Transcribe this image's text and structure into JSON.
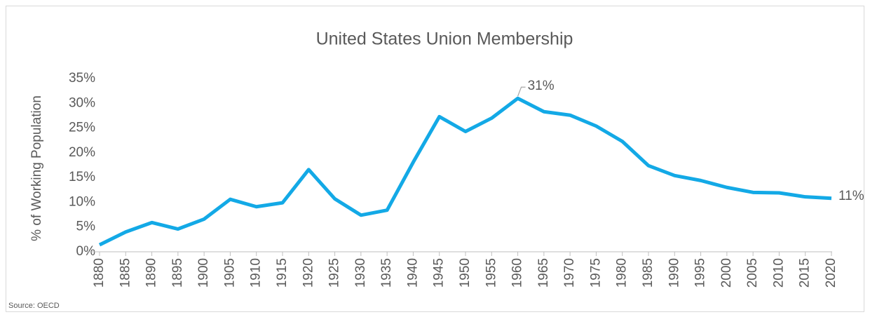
{
  "chart_data": {
    "type": "line",
    "title": "United States Union Membership",
    "y_label": "% of Working Population",
    "source": "Source: OECD",
    "x": [
      1880,
      1885,
      1890,
      1895,
      1900,
      1905,
      1910,
      1915,
      1920,
      1925,
      1930,
      1935,
      1940,
      1945,
      1950,
      1955,
      1960,
      1965,
      1970,
      1975,
      1980,
      1985,
      1990,
      1995,
      2000,
      2005,
      2010,
      2015,
      2020
    ],
    "series": [
      {
        "name": "Union membership",
        "color": "#13a9e6",
        "values": [
          1.4,
          4.0,
          5.9,
          4.6,
          6.6,
          10.6,
          9.1,
          9.9,
          16.6,
          10.7,
          7.4,
          8.4,
          18.1,
          27.3,
          24.3,
          27.0,
          31,
          28.3,
          27.6,
          25.4,
          22.3,
          17.4,
          15.4,
          14.4,
          13.0,
          12.0,
          11.9,
          11.1,
          10.8
        ],
        "value_labels": [
          null,
          null,
          null,
          null,
          null,
          null,
          null,
          null,
          null,
          null,
          null,
          null,
          null,
          null,
          null,
          null,
          "31%",
          null,
          null,
          null,
          null,
          null,
          null,
          null,
          null,
          null,
          null,
          null,
          "11%"
        ]
      }
    ],
    "xlim": [
      1880,
      2020
    ],
    "xticks": [
      1880,
      1885,
      1890,
      1895,
      1900,
      1905,
      1910,
      1915,
      1920,
      1925,
      1930,
      1935,
      1940,
      1945,
      1950,
      1955,
      1960,
      1965,
      1970,
      1975,
      1980,
      1985,
      1990,
      1995,
      2000,
      2005,
      2010,
      2015,
      2020
    ],
    "ylim": [
      0,
      35
    ],
    "yticks": [
      {
        "value": 0,
        "label": "0%"
      },
      {
        "value": 5,
        "label": "5%"
      },
      {
        "value": 10,
        "label": "10%"
      },
      {
        "value": 15,
        "label": "15%"
      },
      {
        "value": 20,
        "label": "20%"
      },
      {
        "value": 25,
        "label": "25%"
      },
      {
        "value": 30,
        "label": "30%"
      },
      {
        "value": 35,
        "label": "35%"
      }
    ],
    "grid": false
  }
}
